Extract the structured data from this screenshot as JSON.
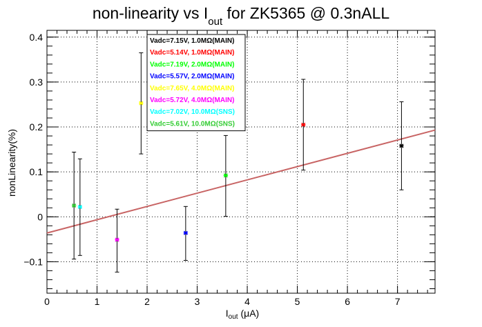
{
  "chart_data": {
    "type": "scatter",
    "title": {
      "prefix": "non-linearity vs I",
      "subscript": "out",
      "suffix": " for ZK5365 @ 0.3nALL"
    },
    "xlabel": {
      "main": "I",
      "sub": "out",
      "unit": " (μA)"
    },
    "ylabel": "nonLinearity(%)",
    "xlim": [
      0,
      7.75
    ],
    "ylim": [
      -0.17,
      0.415
    ],
    "x_ticks": [
      0,
      1,
      2,
      3,
      4,
      5,
      6,
      7
    ],
    "y_ticks": [
      -0.1,
      0,
      0.1,
      0.2,
      0.3,
      0.4
    ],
    "x_tick_labels": [
      "0",
      "1",
      "2",
      "3",
      "4",
      "5",
      "6",
      "7"
    ],
    "y_tick_labels": [
      "−0.1",
      "0",
      "0.1",
      "0.2",
      "0.3",
      "0.4"
    ],
    "grid": true,
    "legend_position": "top-center",
    "series": [
      {
        "name": "Vadc=7.15V, 1.0MΩ(MAIN)",
        "color": "#000000",
        "x": 7.08,
        "y": 0.158,
        "err_low": 0.06,
        "err_high": 0.256
      },
      {
        "name": "Vadc=5.14V, 1.0MΩ(MAIN)",
        "color": "#ff0000",
        "x": 5.12,
        "y": 0.205,
        "err_low": 0.104,
        "err_high": 0.306
      },
      {
        "name": "Vadc=7.19V, 2.0MΩ(MAIN)",
        "color": "#00ff00",
        "x": 3.57,
        "y": 0.092,
        "err_low": 0.001,
        "err_high": 0.181
      },
      {
        "name": "Vadc=5.57V, 2.0MΩ(MAIN)",
        "color": "#0000ff",
        "x": 2.77,
        "y": -0.036,
        "err_low": -0.097,
        "err_high": 0.023
      },
      {
        "name": "Vadc=7.65V, 4.0MΩ(MAIN)",
        "color": "#ffff00",
        "x": 1.88,
        "y": 0.253,
        "err_low": 0.14,
        "err_high": 0.365
      },
      {
        "name": "Vadc=5.72V, 4.0MΩ(MAIN)",
        "color": "#ff00ff",
        "x": 1.4,
        "y": -0.051,
        "err_low": -0.123,
        "err_high": 0.017
      },
      {
        "name": "Vadc=7.02V, 10.0MΩ(SNS)",
        "color": "#00ffff",
        "x": 0.66,
        "y": 0.022,
        "err_low": -0.086,
        "err_high": 0.129
      },
      {
        "name": "Vadc=5.61V, 10.0MΩ(SNS)",
        "color": "#33cc33",
        "x": 0.54,
        "y": 0.025,
        "err_low": -0.094,
        "err_high": 0.144
      }
    ],
    "fit_line": {
      "color": "#c86464",
      "x": [
        0,
        7.75
      ],
      "y": [
        -0.036,
        0.193
      ]
    }
  }
}
